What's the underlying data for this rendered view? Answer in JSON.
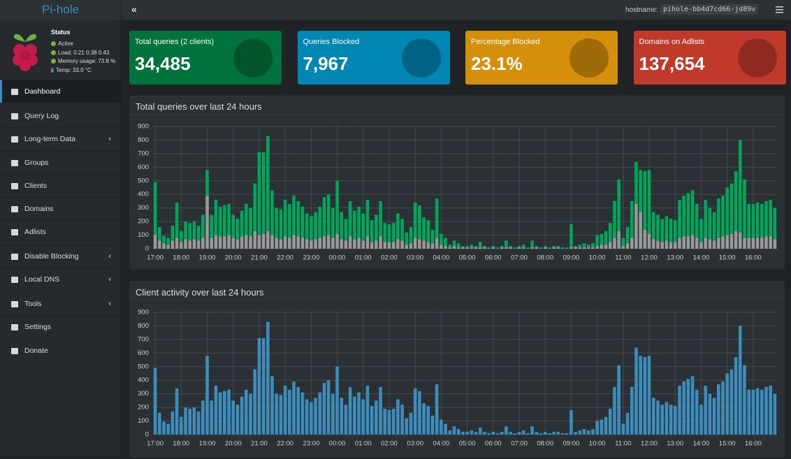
{
  "sidebar": {
    "logo": "Pi-hole",
    "status_title": "Status",
    "status": [
      "Active",
      "Load:  0.21  0.38  0.43",
      "Memory usage:  73.8 %",
      "Temp: 33.0 °C"
    ],
    "menu": [
      "Dashboard",
      "Query Log",
      "Long-term Data",
      "Groups",
      "Clients",
      "Domains",
      "Adlists",
      "Disable Blocking",
      "Local DNS",
      "Tools",
      "Settings",
      "Donate"
    ]
  },
  "topbar": {
    "toggle": "«",
    "hostname_label": "hostname:",
    "hostname": "pihole-bb4d7cd66-jd89v"
  },
  "stats": [
    {
      "label": "Total queries (2 clients)",
      "value": "34,485"
    },
    {
      "label": "Queries Blocked",
      "value": "7,967"
    },
    {
      "label": "Percentage Blocked",
      "value": "23.1%"
    },
    {
      "label": "Domains on Adlists",
      "value": "137,654"
    }
  ],
  "chart_data": [
    {
      "type": "bar",
      "stacked": true,
      "title": "Total queries over last 24 hours",
      "grid": true,
      "ylim": [
        0,
        900
      ],
      "yticks": [
        0,
        100,
        200,
        300,
        400,
        500,
        600,
        700,
        800,
        900
      ],
      "categories": [
        "17:00",
        null,
        null,
        null,
        null,
        null,
        "18:00",
        null,
        null,
        null,
        null,
        null,
        "19:00",
        null,
        null,
        null,
        null,
        null,
        "20:00",
        null,
        null,
        null,
        null,
        null,
        "21:00",
        null,
        null,
        null,
        null,
        null,
        "22:00",
        null,
        null,
        null,
        null,
        null,
        "23:00",
        null,
        null,
        null,
        null,
        null,
        "00:00",
        null,
        null,
        null,
        null,
        null,
        "01:00",
        null,
        null,
        null,
        null,
        null,
        "02:00",
        null,
        null,
        null,
        null,
        null,
        "03:00",
        null,
        null,
        null,
        null,
        null,
        "04:00",
        null,
        null,
        null,
        null,
        null,
        "05:00",
        null,
        null,
        null,
        null,
        null,
        "06:00",
        null,
        null,
        null,
        null,
        null,
        "07:00",
        null,
        null,
        null,
        null,
        null,
        "08:00",
        null,
        null,
        null,
        null,
        null,
        "09:00",
        null,
        null,
        null,
        null,
        null,
        "10:00",
        null,
        null,
        null,
        null,
        null,
        "11:00",
        null,
        null,
        null,
        null,
        null,
        "12:00",
        null,
        null,
        null,
        null,
        null,
        "13:00",
        null,
        null,
        null,
        null,
        null,
        "14:00",
        null,
        null,
        null,
        null,
        null,
        "15:00",
        null,
        null,
        null,
        null,
        null,
        "16:00",
        null,
        null,
        null,
        null,
        null
      ],
      "series": [
        {
          "color": "#999999",
          "values": [
            100,
            60,
            40,
            30,
            60,
            80,
            50,
            70,
            60,
            70,
            60,
            80,
            390,
            80,
            100,
            90,
            90,
            100,
            80,
            70,
            90,
            100,
            90,
            130,
            100,
            110,
            130,
            100,
            80,
            70,
            90,
            80,
            100,
            90,
            80,
            70,
            60,
            70,
            80,
            90,
            100,
            80,
            110,
            70,
            60,
            90,
            70,
            80,
            60,
            90,
            50,
            60,
            90,
            50,
            50,
            50,
            70,
            60,
            30,
            40,
            80,
            70,
            60,
            50,
            40,
            80,
            30,
            20,
            10,
            20,
            10,
            10,
            10,
            10,
            10,
            10,
            10,
            0,
            10,
            0,
            10,
            10,
            10,
            0,
            10,
            10,
            0,
            10,
            10,
            0,
            10,
            0,
            10,
            10,
            0,
            0,
            10,
            10,
            10,
            10,
            10,
            10,
            20,
            30,
            30,
            50,
            80,
            130,
            20,
            40,
            80,
            330,
            270,
            140,
            110,
            70,
            60,
            50,
            60,
            50,
            50,
            80,
            90,
            90,
            100,
            80,
            50,
            80,
            70,
            60,
            80,
            90,
            100,
            110,
            130,
            120,
            80,
            80,
            80,
            80,
            80,
            90,
            90,
            70
          ]
        },
        {
          "color": "#00a65a",
          "values": [
            390,
            100,
            55,
            50,
            110,
            260,
            80,
            130,
            130,
            130,
            110,
            170,
            190,
            170,
            260,
            220,
            230,
            230,
            170,
            150,
            190,
            230,
            210,
            350,
            610,
            600,
            700,
            330,
            220,
            220,
            270,
            250,
            290,
            260,
            230,
            190,
            180,
            200,
            230,
            290,
            300,
            220,
            390,
            200,
            160,
            260,
            210,
            230,
            200,
            270,
            160,
            190,
            260,
            140,
            130,
            140,
            190,
            160,
            90,
            120,
            260,
            250,
            170,
            160,
            100,
            290,
            80,
            60,
            20,
            40,
            30,
            10,
            10,
            20,
            10,
            40,
            10,
            10,
            10,
            10,
            10,
            50,
            10,
            10,
            10,
            20,
            10,
            50,
            10,
            10,
            10,
            10,
            10,
            10,
            10,
            10,
            170,
            10,
            20,
            30,
            20,
            30,
            80,
            80,
            100,
            140,
            270,
            380,
            60,
            120,
            270,
            310,
            310,
            430,
            470,
            200,
            190,
            170,
            180,
            170,
            160,
            280,
            300,
            320,
            330,
            250,
            170,
            280,
            230,
            210,
            290,
            300,
            350,
            370,
            440,
            680,
            430,
            250,
            250,
            260,
            250,
            260,
            270,
            230
          ]
        }
      ]
    },
    {
      "type": "bar",
      "stacked": true,
      "title": "Client activity over last 24 hours",
      "grid": true,
      "ylim": [
        0,
        900
      ],
      "yticks": [
        0,
        100,
        200,
        300,
        400,
        500,
        600,
        700,
        800,
        900
      ],
      "categories": [
        "17:00",
        null,
        null,
        null,
        null,
        null,
        "18:00",
        null,
        null,
        null,
        null,
        null,
        "19:00",
        null,
        null,
        null,
        null,
        null,
        "20:00",
        null,
        null,
        null,
        null,
        null,
        "21:00",
        null,
        null,
        null,
        null,
        null,
        "22:00",
        null,
        null,
        null,
        null,
        null,
        "23:00",
        null,
        null,
        null,
        null,
        null,
        "00:00",
        null,
        null,
        null,
        null,
        null,
        "01:00",
        null,
        null,
        null,
        null,
        null,
        "02:00",
        null,
        null,
        null,
        null,
        null,
        "03:00",
        null,
        null,
        null,
        null,
        null,
        "04:00",
        null,
        null,
        null,
        null,
        null,
        "05:00",
        null,
        null,
        null,
        null,
        null,
        "06:00",
        null,
        null,
        null,
        null,
        null,
        "07:00",
        null,
        null,
        null,
        null,
        null,
        "08:00",
        null,
        null,
        null,
        null,
        null,
        "09:00",
        null,
        null,
        null,
        null,
        null,
        "10:00",
        null,
        null,
        null,
        null,
        null,
        "11:00",
        null,
        null,
        null,
        null,
        null,
        "12:00",
        null,
        null,
        null,
        null,
        null,
        "13:00",
        null,
        null,
        null,
        null,
        null,
        "14:00",
        null,
        null,
        null,
        null,
        null,
        "15:00",
        null,
        null,
        null,
        null,
        null,
        "16:00",
        null,
        null,
        null,
        null,
        null
      ],
      "series": [
        {
          "color": "#3c8dbc",
          "values": [
            490,
            160,
            95,
            80,
            170,
            340,
            130,
            200,
            190,
            200,
            170,
            250,
            580,
            250,
            360,
            310,
            320,
            330,
            250,
            220,
            280,
            330,
            300,
            480,
            710,
            710,
            830,
            430,
            300,
            290,
            360,
            330,
            390,
            350,
            310,
            260,
            240,
            270,
            310,
            380,
            400,
            300,
            500,
            270,
            220,
            350,
            280,
            310,
            260,
            360,
            210,
            250,
            350,
            190,
            180,
            190,
            260,
            220,
            120,
            160,
            340,
            320,
            230,
            210,
            140,
            370,
            110,
            80,
            30,
            60,
            40,
            20,
            20,
            30,
            20,
            50,
            20,
            10,
            20,
            10,
            20,
            60,
            20,
            10,
            20,
            30,
            10,
            60,
            20,
            10,
            20,
            10,
            20,
            20,
            10,
            10,
            180,
            20,
            30,
            40,
            30,
            40,
            100,
            110,
            130,
            190,
            350,
            510,
            80,
            160,
            350,
            640,
            580,
            570,
            580,
            270,
            250,
            220,
            240,
            220,
            210,
            360,
            390,
            410,
            430,
            330,
            220,
            360,
            300,
            270,
            370,
            390,
            450,
            480,
            570,
            800,
            510,
            330,
            330,
            340,
            330,
            350,
            360,
            300
          ]
        }
      ]
    }
  ]
}
